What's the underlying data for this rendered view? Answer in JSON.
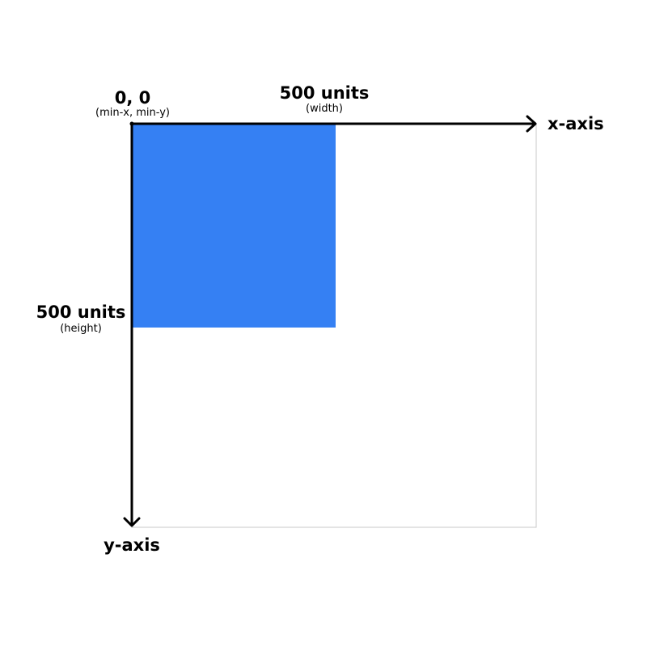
{
  "colors": {
    "viewport_border": "#c8c8c8",
    "filled_square": "#3580f3",
    "axes": "#000000"
  },
  "origin": {
    "label": "0, 0",
    "sublabel": "(min-x, min-y)"
  },
  "width_annotation": {
    "label": "500 units",
    "sublabel": "(width)"
  },
  "height_annotation": {
    "label": "500 units",
    "sublabel": "(height)"
  },
  "axes": {
    "x_label": "x-axis",
    "y_label": "y-axis"
  }
}
